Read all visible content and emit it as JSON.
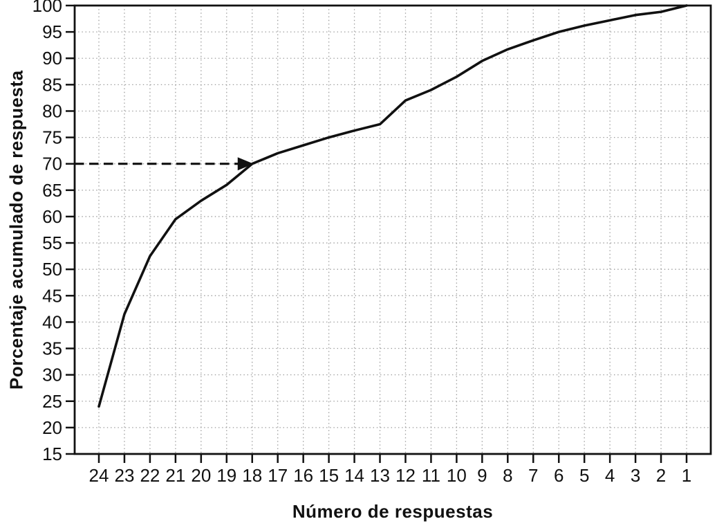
{
  "chart_data": {
    "type": "line",
    "title": "",
    "xlabel": "Número de respuestas",
    "ylabel": "Porcentaje acumulado de respuesta",
    "categories": [
      24,
      23,
      22,
      21,
      20,
      19,
      18,
      17,
      16,
      15,
      14,
      13,
      12,
      11,
      10,
      9,
      8,
      7,
      6,
      5,
      4,
      3,
      2,
      1
    ],
    "series": [
      {
        "name": "Porcentaje acumulado de respuesta",
        "values": [
          24,
          41.5,
          52.5,
          59.5,
          63,
          66,
          70,
          72,
          73.5,
          75,
          76.3,
          77.5,
          82,
          84,
          86.5,
          89.5,
          91.7,
          93.4,
          95,
          96.2,
          97.2,
          98.2,
          98.8,
          100
        ]
      }
    ],
    "ylim": [
      15,
      100
    ],
    "ytick_step": 5,
    "yticks": [
      15,
      20,
      25,
      30,
      35,
      40,
      45,
      50,
      55,
      60,
      65,
      70,
      75,
      80,
      85,
      90,
      95,
      100
    ],
    "x_axis_reversed": true,
    "grid": "dotted, both axes",
    "legend_position": "none",
    "annotation": {
      "type": "dashed-arrow",
      "y": 70,
      "from": "y-axis",
      "points_to_x": 18
    }
  },
  "colors": {
    "ink": "#111111",
    "grid": "#999999",
    "background": "#ffffff"
  }
}
